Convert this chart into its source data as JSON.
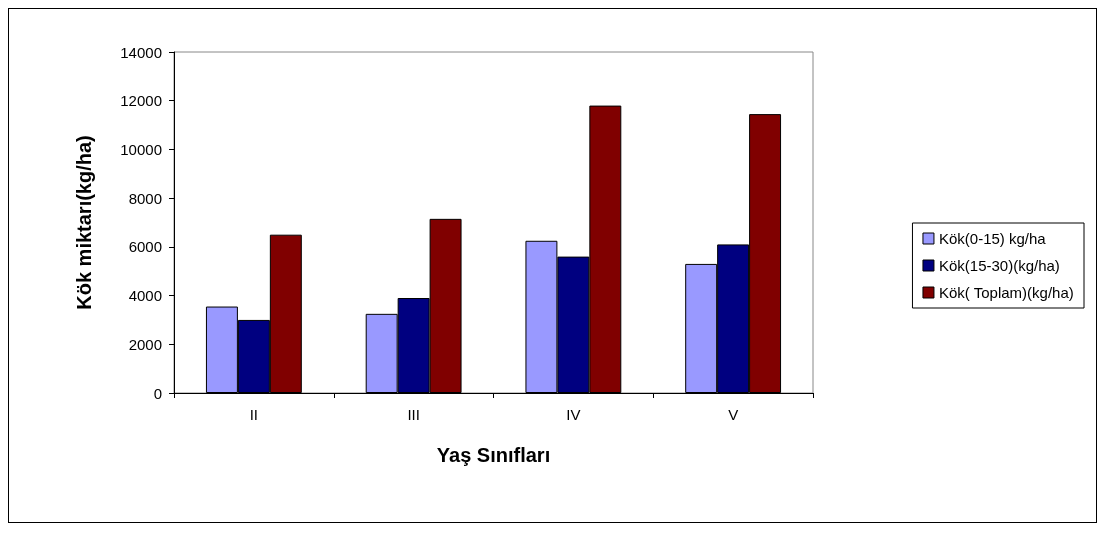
{
  "chart_data": {
    "type": "bar",
    "xlabel": "Yaş Sınıfları",
    "ylabel": "Kök miktarı(kg/ha)",
    "categories": [
      "II",
      "III",
      "IV",
      "V"
    ],
    "series": [
      {
        "name": "Kök(0-15) kg/ha",
        "color": "#9999ff",
        "values": [
          3550,
          3250,
          6250,
          5300
        ]
      },
      {
        "name": "Kök(15-30)(kg/ha)",
        "color": "#000080",
        "values": [
          3000,
          3900,
          5600,
          6100
        ]
      },
      {
        "name": "Kök( Toplam)(kg/ha)",
        "color": "#800000",
        "values": [
          6500,
          7150,
          11800,
          11450
        ]
      }
    ],
    "ylim": [
      0,
      14000
    ],
    "yticks": [
      0,
      2000,
      4000,
      6000,
      8000,
      10000,
      12000,
      14000
    ],
    "grid": false,
    "legend": "right"
  }
}
